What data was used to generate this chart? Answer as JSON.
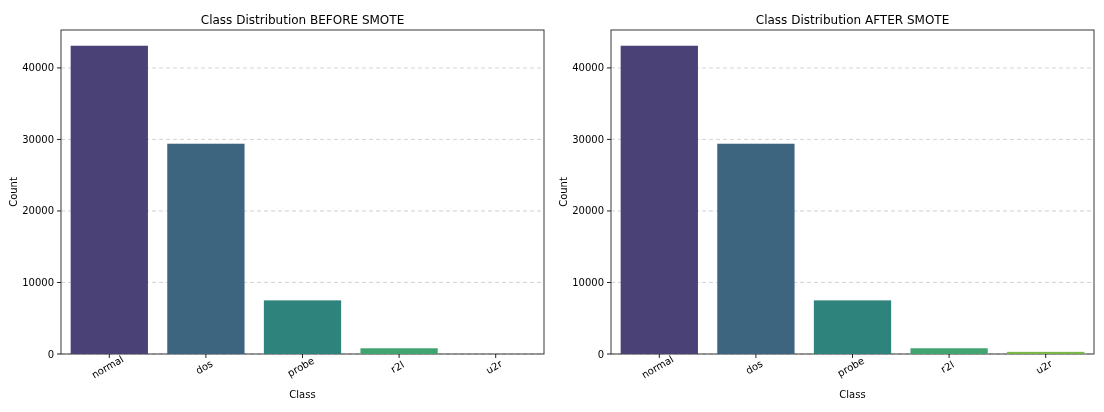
{
  "chart_data": [
    {
      "type": "bar",
      "title": "Class Distribution BEFORE SMOTE",
      "xlabel": "Class",
      "ylabel": "Count",
      "categories": [
        "normal",
        "dos",
        "probe",
        "r2l",
        "u2r"
      ],
      "values": [
        43100,
        29400,
        7500,
        800,
        0
      ],
      "colors": [
        "#4a4177",
        "#3d6580",
        "#2e847c",
        "#41a36f",
        "#7ab648"
      ],
      "ylim": [
        0,
        45300
      ],
      "yticks": [
        0,
        10000,
        20000,
        30000,
        40000
      ],
      "grid": "y"
    },
    {
      "type": "bar",
      "title": "Class Distribution AFTER SMOTE",
      "xlabel": "Class",
      "ylabel": "Count",
      "categories": [
        "normal",
        "dos",
        "probe",
        "r2l",
        "u2r"
      ],
      "values": [
        43100,
        29400,
        7500,
        800,
        300
      ],
      "colors": [
        "#4a4177",
        "#3d6580",
        "#2e847c",
        "#41a36f",
        "#7ab648"
      ],
      "ylim": [
        0,
        45300
      ],
      "yticks": [
        0,
        10000,
        20000,
        30000,
        40000
      ],
      "grid": "y"
    }
  ]
}
